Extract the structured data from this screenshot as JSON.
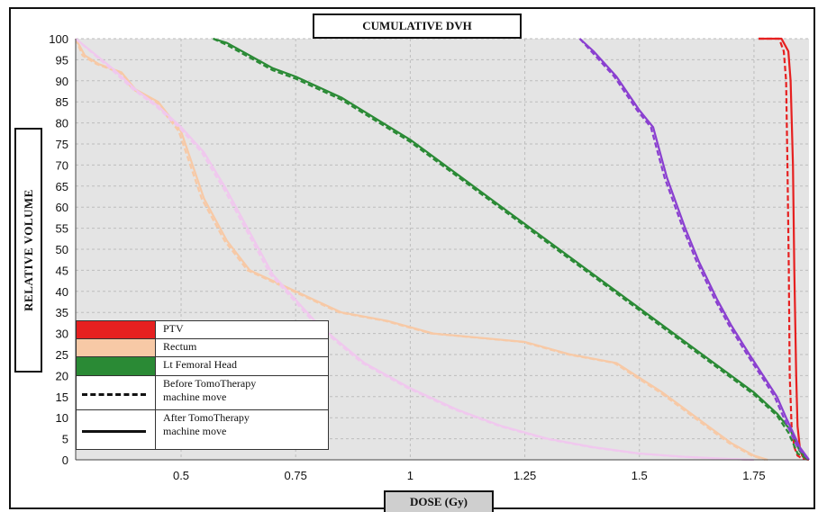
{
  "chart_data": {
    "type": "line",
    "title": "CUMULATIVE DVH",
    "xlabel": "DOSE (Gy)",
    "ylabel": "RELATIVE VOLUME",
    "xlim": [
      0.27,
      1.87
    ],
    "ylim": [
      0,
      100
    ],
    "xticks": [
      0.5,
      0.75,
      1,
      1.25,
      1.5,
      1.75
    ],
    "xtick_labels": [
      "0.5",
      "0.75",
      "1",
      "1.25",
      "1.5",
      "1.75"
    ],
    "yticks": [
      0,
      5,
      10,
      15,
      20,
      25,
      30,
      35,
      40,
      45,
      50,
      55,
      60,
      65,
      70,
      75,
      80,
      85,
      90,
      95,
      100
    ],
    "ytick_labels": [
      "0",
      "5",
      "10",
      "15",
      "20",
      "25",
      "30",
      "35",
      "40",
      "45",
      "50",
      "55",
      "60",
      "65",
      "70",
      "75",
      "80",
      "85",
      "90",
      "95",
      "100"
    ],
    "grid": true,
    "background": "#e4e4e4",
    "legend_position": "bottom-left",
    "series": [
      {
        "name": "PTV",
        "color": "#e62020",
        "style": "solid",
        "x": [
          1.76,
          1.81,
          1.825,
          1.83,
          1.835,
          1.838,
          1.842,
          1.845,
          1.85,
          1.855,
          1.86,
          1.87
        ],
        "y": [
          100,
          100,
          97,
          90,
          70,
          45,
          20,
          8,
          3,
          1,
          0.3,
          0
        ]
      },
      {
        "name": "PTV",
        "color": "#e62020",
        "style": "dashed",
        "x": [
          1.76,
          1.805,
          1.815,
          1.82,
          1.823,
          1.826,
          1.828,
          1.832,
          1.838,
          1.845,
          1.855,
          1.87
        ],
        "y": [
          100,
          100,
          97,
          90,
          70,
          45,
          20,
          8,
          3,
          1,
          0.3,
          0
        ]
      },
      {
        "name": "Rectum",
        "color": "#f7c9a6",
        "style": "solid",
        "x": [
          0.27,
          0.29,
          0.32,
          0.37,
          0.4,
          0.45,
          0.5,
          0.55,
          0.6,
          0.65,
          0.75,
          0.85,
          0.95,
          1.05,
          1.15,
          1.25,
          1.35,
          1.45,
          1.55,
          1.6,
          1.65,
          1.7,
          1.75,
          1.78
        ],
        "y": [
          100,
          96,
          94,
          92,
          88,
          85,
          78,
          62,
          52,
          45,
          40,
          35,
          33,
          30,
          29,
          28,
          25,
          23,
          16,
          12,
          8,
          4,
          1,
          0
        ]
      },
      {
        "name": "Rectum",
        "color": "#f7c9a6",
        "style": "dashed",
        "x": [
          0.27,
          0.285,
          0.315,
          0.365,
          0.395,
          0.445,
          0.495,
          0.545,
          0.595,
          0.645,
          0.745,
          0.845,
          0.945,
          1.045,
          1.145,
          1.245,
          1.345,
          1.445,
          1.545,
          1.595,
          1.645,
          1.695,
          1.745,
          1.775
        ],
        "y": [
          100,
          96,
          94,
          92,
          88,
          85,
          78,
          62,
          52,
          45,
          40,
          35,
          33,
          30,
          29,
          28,
          25,
          23,
          16,
          12,
          8,
          4,
          1,
          0
        ]
      },
      {
        "name": "Lt Femoral Head",
        "color": "#2a8a35",
        "style": "solid",
        "x": [
          0.57,
          0.6,
          0.65,
          0.7,
          0.75,
          0.85,
          1.0,
          1.1,
          1.2,
          1.3,
          1.4,
          1.5,
          1.6,
          1.7,
          1.75,
          1.8,
          1.83,
          1.85,
          1.87
        ],
        "y": [
          100,
          99,
          96,
          93,
          91,
          86,
          76,
          68,
          60,
          52,
          44,
          36,
          28,
          20,
          16,
          11,
          7,
          2,
          0
        ]
      },
      {
        "name": "Lt Femoral Head",
        "color": "#2a8a35",
        "style": "dashed",
        "x": [
          0.57,
          0.6,
          0.65,
          0.7,
          0.75,
          0.85,
          1.0,
          1.1,
          1.2,
          1.3,
          1.4,
          1.5,
          1.6,
          1.7,
          1.75,
          1.8,
          1.825,
          1.845,
          1.87
        ],
        "y": [
          100,
          98.5,
          95.5,
          92.5,
          90.5,
          85.5,
          75.5,
          67.5,
          59.5,
          51.5,
          43.5,
          35.5,
          27.5,
          19.5,
          15.5,
          10.5,
          6.5,
          1.5,
          0
        ]
      },
      {
        "name": "",
        "color": "#8a3fd0",
        "style": "solid",
        "x": [
          1.37,
          1.4,
          1.45,
          1.5,
          1.53,
          1.56,
          1.6,
          1.63,
          1.67,
          1.7,
          1.74,
          1.77,
          1.8,
          1.82,
          1.85,
          1.87
        ],
        "y": [
          100,
          97,
          91,
          83,
          79,
          67,
          55,
          47,
          38,
          32,
          25,
          20,
          15,
          10,
          3,
          0
        ]
      },
      {
        "name": "",
        "color": "#8a3fd0",
        "style": "dashed",
        "x": [
          1.37,
          1.395,
          1.445,
          1.495,
          1.525,
          1.555,
          1.595,
          1.625,
          1.665,
          1.695,
          1.735,
          1.765,
          1.795,
          1.815,
          1.845,
          1.87
        ],
        "y": [
          100,
          97,
          91,
          83,
          79,
          67,
          55,
          47,
          38,
          32,
          25,
          20,
          15,
          10,
          3,
          0
        ]
      },
      {
        "name": "",
        "color": "#f0c8ee",
        "style": "solid",
        "x": [
          0.27,
          0.35,
          0.4,
          0.45,
          0.5,
          0.55,
          0.6,
          0.65,
          0.7,
          0.8,
          0.9,
          1.0,
          1.1,
          1.2,
          1.3,
          1.4,
          1.5,
          1.6,
          1.7,
          1.75
        ],
        "y": [
          100,
          93,
          88,
          84,
          79,
          73,
          64,
          54,
          44,
          32,
          23,
          17,
          12,
          8,
          5,
          3,
          1.5,
          0.7,
          0.2,
          0
        ]
      },
      {
        "name": "",
        "color": "#f0c8ee",
        "style": "dashed",
        "x": [
          0.27,
          0.345,
          0.395,
          0.445,
          0.495,
          0.545,
          0.595,
          0.645,
          0.695,
          0.795,
          0.895,
          0.995,
          1.095,
          1.195,
          1.295,
          1.395,
          1.495,
          1.595,
          1.695,
          1.745
        ],
        "y": [
          100,
          93,
          88,
          84,
          79,
          73,
          64,
          54,
          44,
          32,
          23,
          17,
          12,
          8,
          5,
          3,
          1.5,
          0.7,
          0.2,
          0
        ]
      }
    ],
    "legend": [
      {
        "label": "PTV",
        "label2": "",
        "kind": "swatch",
        "color": "#e62020"
      },
      {
        "label": "Rectum",
        "label2": "",
        "kind": "swatch",
        "color": "#f7c9a6"
      },
      {
        "label": "Lt Femoral Head",
        "label2": "",
        "kind": "swatch",
        "color": "#2a8a35"
      },
      {
        "label": "Before TomoTherapy",
        "label2": "machine move",
        "kind": "dashed",
        "color": "#111111"
      },
      {
        "label": "After TomoTherapy",
        "label2": "machine move",
        "kind": "solid",
        "color": "#111111"
      }
    ]
  }
}
